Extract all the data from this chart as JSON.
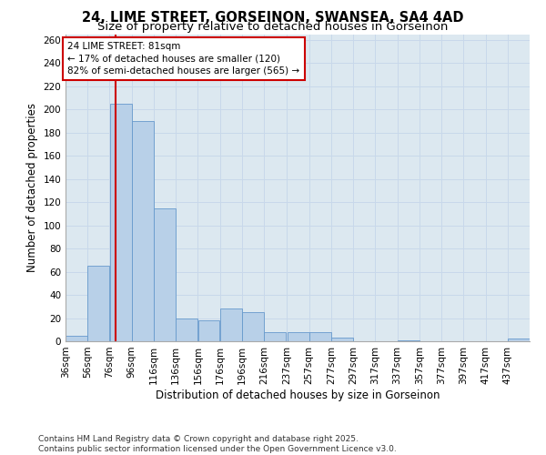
{
  "title_line1": "24, LIME STREET, GORSEINON, SWANSEA, SA4 4AD",
  "title_line2": "Size of property relative to detached houses in Gorseinon",
  "xlabel": "Distribution of detached houses by size in Gorseinon",
  "ylabel": "Number of detached properties",
  "bin_starts": [
    36,
    56,
    76,
    96,
    116,
    136,
    156,
    176,
    196,
    216,
    237,
    257,
    277,
    297,
    317,
    337,
    357,
    377,
    397,
    417,
    437
  ],
  "bin_labels": [
    "36sqm",
    "56sqm",
    "76sqm",
    "96sqm",
    "116sqm",
    "136sqm",
    "156sqm",
    "176sqm",
    "196sqm",
    "216sqm",
    "237sqm",
    "257sqm",
    "277sqm",
    "297sqm",
    "317sqm",
    "337sqm",
    "357sqm",
    "377sqm",
    "397sqm",
    "417sqm",
    "437sqm"
  ],
  "bar_heights": [
    5,
    65,
    205,
    190,
    115,
    20,
    18,
    28,
    25,
    8,
    8,
    8,
    3,
    0,
    0,
    1,
    0,
    0,
    0,
    0,
    2
  ],
  "bar_color": "#b8d0e8",
  "bar_edge_color": "#6699cc",
  "property_size": 81,
  "vline_color": "#cc0000",
  "annotation_line1": "24 LIME STREET: 81sqm",
  "annotation_line2": "← 17% of detached houses are smaller (120)",
  "annotation_line3": "82% of semi-detached houses are larger (565) →",
  "annotation_box_color": "#cc0000",
  "ylim": [
    0,
    265
  ],
  "yticks": [
    0,
    20,
    40,
    60,
    80,
    100,
    120,
    140,
    160,
    180,
    200,
    220,
    240,
    260
  ],
  "grid_color": "#c8d8ea",
  "bg_color": "#dce8f0",
  "footer_line1": "Contains HM Land Registry data © Crown copyright and database right 2025.",
  "footer_line2": "Contains public sector information licensed under the Open Government Licence v3.0.",
  "title_fontsize": 10.5,
  "subtitle_fontsize": 9.5,
  "axis_label_fontsize": 8.5,
  "tick_fontsize": 7.5,
  "annotation_fontsize": 7.5,
  "footer_fontsize": 6.5
}
